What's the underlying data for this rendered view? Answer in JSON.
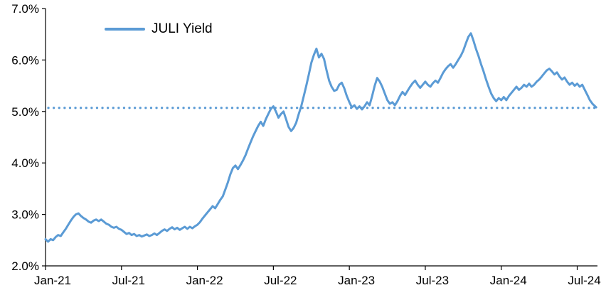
{
  "chart_data": {
    "type": "line",
    "title": "",
    "background": "#FFFFFF",
    "grid": false,
    "axis_color": "#000000",
    "legend": {
      "position": "top-left",
      "entries": [
        "JULI Yield"
      ]
    },
    "xlim": [
      0,
      43.6
    ],
    "ylim": [
      2.0,
      7.0
    ],
    "yticks": [
      {
        "value": 2.0,
        "label": "2.0%"
      },
      {
        "value": 3.0,
        "label": "3.0%"
      },
      {
        "value": 4.0,
        "label": "4.0%"
      },
      {
        "value": 5.0,
        "label": "5.0%"
      },
      {
        "value": 6.0,
        "label": "6.0%"
      },
      {
        "value": 7.0,
        "label": "7.0%"
      }
    ],
    "xticks": [
      {
        "value": 0,
        "label": "Jan-21"
      },
      {
        "value": 6,
        "label": "Jul-21"
      },
      {
        "value": 12,
        "label": "Jan-22"
      },
      {
        "value": 18,
        "label": "Jul-22"
      },
      {
        "value": 24,
        "label": "Jan-23"
      },
      {
        "value": 30,
        "label": "Jul-23"
      },
      {
        "value": 36,
        "label": "Jan-24"
      },
      {
        "value": 42,
        "label": "Jul-24"
      }
    ],
    "reference_line": {
      "value": 5.07,
      "color": "#5B9BD5",
      "style": "dotted"
    },
    "series": [
      {
        "name": "JULI Yield",
        "color": "#5B9BD5",
        "points": [
          [
            0,
            2.52
          ],
          [
            0.2,
            2.47
          ],
          [
            0.4,
            2.52
          ],
          [
            0.6,
            2.5
          ],
          [
            0.8,
            2.56
          ],
          [
            1.0,
            2.6
          ],
          [
            1.2,
            2.58
          ],
          [
            1.4,
            2.65
          ],
          [
            1.6,
            2.72
          ],
          [
            1.8,
            2.8
          ],
          [
            2.0,
            2.88
          ],
          [
            2.2,
            2.95
          ],
          [
            2.4,
            3.0
          ],
          [
            2.6,
            3.02
          ],
          [
            2.8,
            2.97
          ],
          [
            3.0,
            2.93
          ],
          [
            3.2,
            2.9
          ],
          [
            3.4,
            2.86
          ],
          [
            3.6,
            2.84
          ],
          [
            3.8,
            2.88
          ],
          [
            4.0,
            2.9
          ],
          [
            4.2,
            2.87
          ],
          [
            4.4,
            2.9
          ],
          [
            4.6,
            2.86
          ],
          [
            4.8,
            2.82
          ],
          [
            5.0,
            2.8
          ],
          [
            5.2,
            2.76
          ],
          [
            5.4,
            2.74
          ],
          [
            5.6,
            2.76
          ],
          [
            5.8,
            2.72
          ],
          [
            6.0,
            2.7
          ],
          [
            6.2,
            2.66
          ],
          [
            6.4,
            2.62
          ],
          [
            6.6,
            2.64
          ],
          [
            6.8,
            2.6
          ],
          [
            7.0,
            2.62
          ],
          [
            7.2,
            2.58
          ],
          [
            7.4,
            2.6
          ],
          [
            7.6,
            2.57
          ],
          [
            7.8,
            2.59
          ],
          [
            8.0,
            2.61
          ],
          [
            8.2,
            2.58
          ],
          [
            8.4,
            2.6
          ],
          [
            8.6,
            2.63
          ],
          [
            8.8,
            2.6
          ],
          [
            9.0,
            2.64
          ],
          [
            9.2,
            2.68
          ],
          [
            9.4,
            2.71
          ],
          [
            9.6,
            2.68
          ],
          [
            9.8,
            2.72
          ],
          [
            10.0,
            2.75
          ],
          [
            10.2,
            2.71
          ],
          [
            10.4,
            2.74
          ],
          [
            10.6,
            2.7
          ],
          [
            10.8,
            2.73
          ],
          [
            11.0,
            2.76
          ],
          [
            11.2,
            2.72
          ],
          [
            11.4,
            2.76
          ],
          [
            11.6,
            2.73
          ],
          [
            11.8,
            2.77
          ],
          [
            12.0,
            2.8
          ],
          [
            12.2,
            2.85
          ],
          [
            12.4,
            2.92
          ],
          [
            12.6,
            2.98
          ],
          [
            12.8,
            3.04
          ],
          [
            13.0,
            3.1
          ],
          [
            13.2,
            3.16
          ],
          [
            13.4,
            3.12
          ],
          [
            13.6,
            3.2
          ],
          [
            13.8,
            3.28
          ],
          [
            14.0,
            3.35
          ],
          [
            14.2,
            3.48
          ],
          [
            14.4,
            3.62
          ],
          [
            14.6,
            3.78
          ],
          [
            14.8,
            3.9
          ],
          [
            15.0,
            3.95
          ],
          [
            15.2,
            3.88
          ],
          [
            15.4,
            3.96
          ],
          [
            15.6,
            4.05
          ],
          [
            15.8,
            4.15
          ],
          [
            16.0,
            4.28
          ],
          [
            16.2,
            4.4
          ],
          [
            16.4,
            4.52
          ],
          [
            16.6,
            4.62
          ],
          [
            16.8,
            4.72
          ],
          [
            17.0,
            4.8
          ],
          [
            17.2,
            4.72
          ],
          [
            17.4,
            4.85
          ],
          [
            17.6,
            4.95
          ],
          [
            17.8,
            5.05
          ],
          [
            18.0,
            5.1
          ],
          [
            18.2,
            5.0
          ],
          [
            18.4,
            4.88
          ],
          [
            18.6,
            4.95
          ],
          [
            18.8,
            5.0
          ],
          [
            19.0,
            4.85
          ],
          [
            19.2,
            4.7
          ],
          [
            19.4,
            4.62
          ],
          [
            19.6,
            4.68
          ],
          [
            19.8,
            4.78
          ],
          [
            20.0,
            4.95
          ],
          [
            20.2,
            5.1
          ],
          [
            20.4,
            5.3
          ],
          [
            20.6,
            5.5
          ],
          [
            20.8,
            5.72
          ],
          [
            21.0,
            5.95
          ],
          [
            21.2,
            6.1
          ],
          [
            21.4,
            6.22
          ],
          [
            21.6,
            6.05
          ],
          [
            21.8,
            6.12
          ],
          [
            22.0,
            6.02
          ],
          [
            22.2,
            5.8
          ],
          [
            22.4,
            5.6
          ],
          [
            22.6,
            5.48
          ],
          [
            22.8,
            5.4
          ],
          [
            23.0,
            5.42
          ],
          [
            23.2,
            5.52
          ],
          [
            23.4,
            5.56
          ],
          [
            23.6,
            5.45
          ],
          [
            23.8,
            5.3
          ],
          [
            24.0,
            5.18
          ],
          [
            24.2,
            5.08
          ],
          [
            24.4,
            5.12
          ],
          [
            24.6,
            5.05
          ],
          [
            24.8,
            5.1
          ],
          [
            25.0,
            5.04
          ],
          [
            25.2,
            5.1
          ],
          [
            25.4,
            5.18
          ],
          [
            25.6,
            5.12
          ],
          [
            25.8,
            5.3
          ],
          [
            26.0,
            5.5
          ],
          [
            26.2,
            5.65
          ],
          [
            26.4,
            5.58
          ],
          [
            26.6,
            5.48
          ],
          [
            26.8,
            5.35
          ],
          [
            27.0,
            5.22
          ],
          [
            27.2,
            5.15
          ],
          [
            27.4,
            5.18
          ],
          [
            27.6,
            5.12
          ],
          [
            27.8,
            5.2
          ],
          [
            28.0,
            5.3
          ],
          [
            28.2,
            5.38
          ],
          [
            28.4,
            5.32
          ],
          [
            28.6,
            5.4
          ],
          [
            28.8,
            5.48
          ],
          [
            29.0,
            5.55
          ],
          [
            29.2,
            5.6
          ],
          [
            29.4,
            5.52
          ],
          [
            29.6,
            5.46
          ],
          [
            29.8,
            5.52
          ],
          [
            30.0,
            5.58
          ],
          [
            30.2,
            5.52
          ],
          [
            30.4,
            5.48
          ],
          [
            30.6,
            5.55
          ],
          [
            30.8,
            5.6
          ],
          [
            31.0,
            5.56
          ],
          [
            31.2,
            5.65
          ],
          [
            31.4,
            5.75
          ],
          [
            31.6,
            5.82
          ],
          [
            31.8,
            5.88
          ],
          [
            32.0,
            5.92
          ],
          [
            32.2,
            5.85
          ],
          [
            32.4,
            5.92
          ],
          [
            32.6,
            6.0
          ],
          [
            32.8,
            6.08
          ],
          [
            33.0,
            6.18
          ],
          [
            33.2,
            6.32
          ],
          [
            33.4,
            6.45
          ],
          [
            33.6,
            6.52
          ],
          [
            33.8,
            6.38
          ],
          [
            34.0,
            6.22
          ],
          [
            34.2,
            6.08
          ],
          [
            34.4,
            5.92
          ],
          [
            34.6,
            5.78
          ],
          [
            34.8,
            5.62
          ],
          [
            35.0,
            5.48
          ],
          [
            35.2,
            5.35
          ],
          [
            35.4,
            5.26
          ],
          [
            35.6,
            5.2
          ],
          [
            35.8,
            5.26
          ],
          [
            36.0,
            5.22
          ],
          [
            36.2,
            5.28
          ],
          [
            36.4,
            5.22
          ],
          [
            36.6,
            5.3
          ],
          [
            36.8,
            5.36
          ],
          [
            37.0,
            5.42
          ],
          [
            37.2,
            5.48
          ],
          [
            37.4,
            5.42
          ],
          [
            37.6,
            5.46
          ],
          [
            37.8,
            5.52
          ],
          [
            38.0,
            5.48
          ],
          [
            38.2,
            5.54
          ],
          [
            38.4,
            5.48
          ],
          [
            38.6,
            5.52
          ],
          [
            38.8,
            5.58
          ],
          [
            39.0,
            5.62
          ],
          [
            39.2,
            5.68
          ],
          [
            39.4,
            5.74
          ],
          [
            39.6,
            5.8
          ],
          [
            39.8,
            5.83
          ],
          [
            40.0,
            5.78
          ],
          [
            40.2,
            5.72
          ],
          [
            40.4,
            5.76
          ],
          [
            40.6,
            5.68
          ],
          [
            40.8,
            5.62
          ],
          [
            41.0,
            5.66
          ],
          [
            41.2,
            5.58
          ],
          [
            41.4,
            5.52
          ],
          [
            41.6,
            5.56
          ],
          [
            41.8,
            5.5
          ],
          [
            42.0,
            5.54
          ],
          [
            42.2,
            5.48
          ],
          [
            42.4,
            5.52
          ],
          [
            42.6,
            5.42
          ],
          [
            42.8,
            5.32
          ],
          [
            43.0,
            5.22
          ],
          [
            43.2,
            5.15
          ],
          [
            43.5,
            5.08
          ]
        ]
      }
    ]
  }
}
